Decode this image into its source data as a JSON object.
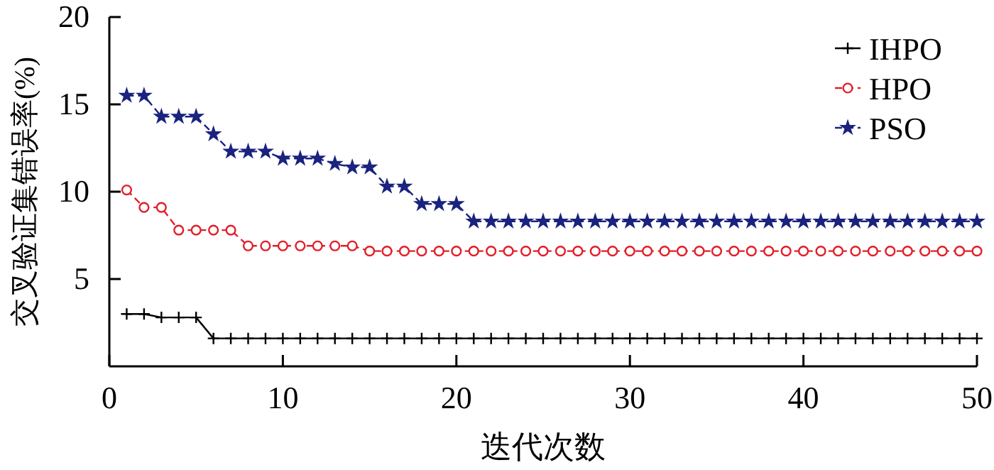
{
  "chart_data": {
    "type": "line",
    "xlabel": "迭代次数",
    "ylabel": "交叉验证集错误率(%)",
    "x": [
      1,
      2,
      3,
      4,
      5,
      6,
      7,
      8,
      9,
      10,
      11,
      12,
      13,
      14,
      15,
      16,
      17,
      18,
      19,
      20,
      21,
      22,
      23,
      24,
      25,
      26,
      27,
      28,
      29,
      30,
      31,
      32,
      33,
      34,
      35,
      36,
      37,
      38,
      39,
      40,
      41,
      42,
      43,
      44,
      45,
      46,
      47,
      48,
      49,
      50
    ],
    "series": [
      {
        "name": "IHPO",
        "color": "#000000",
        "marker": "cross",
        "line_style": "solid",
        "values": [
          3.0,
          3.0,
          2.8,
          2.8,
          2.8,
          1.6,
          1.6,
          1.6,
          1.6,
          1.6,
          1.6,
          1.6,
          1.6,
          1.6,
          1.6,
          1.6,
          1.6,
          1.6,
          1.6,
          1.6,
          1.6,
          1.6,
          1.6,
          1.6,
          1.6,
          1.6,
          1.6,
          1.6,
          1.6,
          1.6,
          1.6,
          1.6,
          1.6,
          1.6,
          1.6,
          1.6,
          1.6,
          1.6,
          1.6,
          1.6,
          1.6,
          1.6,
          1.6,
          1.6,
          1.6,
          1.6,
          1.6,
          1.6,
          1.6,
          1.6
        ]
      },
      {
        "name": "HPO",
        "color": "#e0202a",
        "marker": "circle",
        "line_style": "dashed",
        "values": [
          10.1,
          9.1,
          9.1,
          7.8,
          7.8,
          7.8,
          7.8,
          6.9,
          6.9,
          6.9,
          6.9,
          6.9,
          6.9,
          6.9,
          6.6,
          6.6,
          6.6,
          6.6,
          6.6,
          6.6,
          6.6,
          6.6,
          6.6,
          6.6,
          6.6,
          6.6,
          6.6,
          6.6,
          6.6,
          6.6,
          6.6,
          6.6,
          6.6,
          6.6,
          6.6,
          6.6,
          6.6,
          6.6,
          6.6,
          6.6,
          6.6,
          6.6,
          6.6,
          6.6,
          6.6,
          6.6,
          6.6,
          6.6,
          6.6,
          6.6
        ]
      },
      {
        "name": "PSO",
        "color": "#1a237e",
        "marker": "star",
        "line_style": "dashed",
        "values": [
          15.5,
          15.5,
          14.3,
          14.3,
          14.3,
          13.3,
          12.3,
          12.3,
          12.3,
          11.9,
          11.9,
          11.9,
          11.6,
          11.4,
          11.4,
          10.3,
          10.3,
          9.3,
          9.3,
          9.3,
          8.3,
          8.3,
          8.3,
          8.3,
          8.3,
          8.3,
          8.3,
          8.3,
          8.3,
          8.3,
          8.3,
          8.3,
          8.3,
          8.3,
          8.3,
          8.3,
          8.3,
          8.3,
          8.3,
          8.3,
          8.3,
          8.3,
          8.3,
          8.3,
          8.3,
          8.3,
          8.3,
          8.3,
          8.3,
          8.3
        ]
      }
    ],
    "xlim": [
      0,
      50
    ],
    "xticks": [
      0,
      10,
      20,
      30,
      40,
      50
    ],
    "ylim": [
      0,
      20
    ],
    "yticks": [
      5,
      10,
      15,
      20
    ],
    "grid": false,
    "legend": "top right"
  }
}
